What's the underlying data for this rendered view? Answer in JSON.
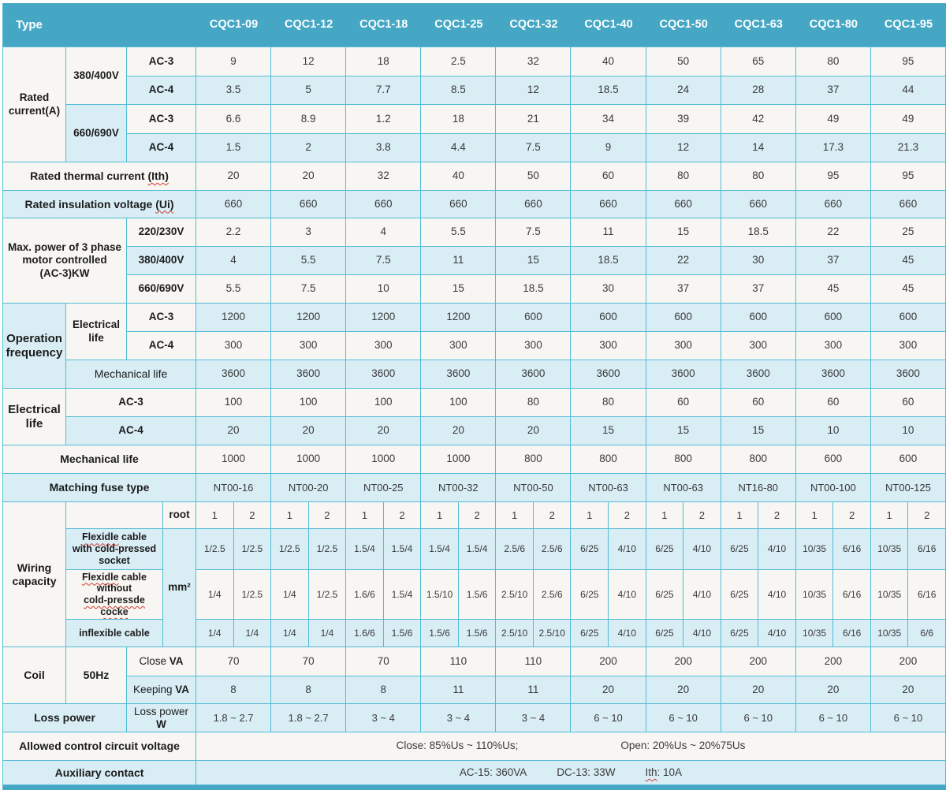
{
  "colors": {
    "header": "#45a7c4",
    "border": "#52bcd6",
    "row_cream": "#f8f6f2",
    "row_blue": "#d9edf5",
    "header_text": "#ffffff",
    "label_text": "#1c1c1c",
    "value_text": "#3a3a3a",
    "squiggle": "#d03a2f"
  },
  "header": {
    "type": "Type",
    "models": [
      "CQC1-09",
      "CQC1-12",
      "CQC1-18",
      "CQC1-25",
      "CQC1-32",
      "CQC1-40",
      "CQC1-50",
      "CQC1-63",
      "CQC1-80",
      "CQC1-95"
    ]
  },
  "rows": {
    "rc": {
      "label": "Rated current(A)",
      "groups": [
        {
          "label": "380/400V",
          "ac3": {
            "label": "AC-3",
            "values": [
              "9",
              "12",
              "18",
              "2.5",
              "32",
              "40",
              "50",
              "65",
              "80",
              "95"
            ]
          },
          "ac4": {
            "label": "AC-4",
            "values": [
              "3.5",
              "5",
              "7.7",
              "8.5",
              "12",
              "18.5",
              "24",
              "28",
              "37",
              "44"
            ]
          }
        },
        {
          "label": "660/690V",
          "ac3": {
            "label": "AC-3",
            "values": [
              "6.6",
              "8.9",
              "1.2",
              "18",
              "21",
              "34",
              "39",
              "42",
              "49",
              "49"
            ]
          },
          "ac4": {
            "label": "AC-4",
            "values": [
              "1.5",
              "2",
              "3.8",
              "4.4",
              "7.5",
              "9",
              "12",
              "14",
              "17.3",
              "21.3"
            ]
          }
        }
      ]
    },
    "thermal": {
      "label_parts": [
        {
          "t": "Rated thermal current "
        },
        {
          "t": "(Ith)",
          "sq": true
        }
      ],
      "values": [
        "20",
        "20",
        "32",
        "40",
        "50",
        "60",
        "80",
        "80",
        "95",
        "95"
      ]
    },
    "insulation": {
      "label_parts": [
        {
          "t": "Rated insulation voltage "
        },
        {
          "t": "(Ui)",
          "sq": true
        }
      ],
      "values": [
        "660",
        "660",
        "660",
        "660",
        "660",
        "660",
        "660",
        "660",
        "660",
        "660"
      ]
    },
    "maxpower": {
      "label_parts": [
        {
          "t": "Max. power of 3 phase",
          "br": true
        },
        {
          "t": "motor controlled",
          "br": true
        },
        {
          "t": "(AC-3)KW"
        }
      ],
      "rows": [
        {
          "label": "220/230V",
          "values": [
            "2.2",
            "3",
            "4",
            "5.5",
            "7.5",
            "11",
            "15",
            "18.5",
            "22",
            "25"
          ]
        },
        {
          "label": "380/400V",
          "values": [
            "4",
            "5.5",
            "7.5",
            "11",
            "15",
            "18.5",
            "22",
            "30",
            "37",
            "45"
          ]
        },
        {
          "label": "660/690V",
          "values": [
            "5.5",
            "7.5",
            "10",
            "15",
            "18.5",
            "30",
            "37",
            "37",
            "45",
            "45"
          ]
        }
      ]
    },
    "opfreq": {
      "label": "Operation frequency",
      "el_label": "Electrical life",
      "ac3": {
        "label": "AC-3",
        "values": [
          "1200",
          "1200",
          "1200",
          "1200",
          "600",
          "600",
          "600",
          "600",
          "600",
          "600"
        ]
      },
      "ac4": {
        "label": "AC-4",
        "values": [
          "300",
          "300",
          "300",
          "300",
          "300",
          "300",
          "300",
          "300",
          "300",
          "300"
        ]
      },
      "mech": {
        "label": "Mechanical life",
        "values": [
          "3600",
          "3600",
          "3600",
          "3600",
          "3600",
          "3600",
          "3600",
          "3600",
          "3600",
          "3600"
        ]
      }
    },
    "elife": {
      "label": "Electrical life",
      "ac3": {
        "label": "AC-3",
        "values": [
          "100",
          "100",
          "100",
          "100",
          "80",
          "80",
          "60",
          "60",
          "60",
          "60"
        ]
      },
      "ac4": {
        "label": "AC-4",
        "values": [
          "20",
          "20",
          "20",
          "20",
          "20",
          "15",
          "15",
          "15",
          "10",
          "10"
        ]
      }
    },
    "mech": {
      "label": "Mechanical life",
      "values": [
        "1000",
        "1000",
        "1000",
        "1000",
        "800",
        "800",
        "800",
        "800",
        "600",
        "600"
      ]
    },
    "fuse": {
      "label": "Matching fuse type",
      "values": [
        "NT00-16",
        "NT00-20",
        "NT00-25",
        "NT00-32",
        "NT00-50",
        "NT00-63",
        "NT00-63",
        "NT16-80",
        "NT00-100",
        "NT00-125"
      ]
    },
    "wiring": {
      "label": "Wiring capacity",
      "root_label": "root",
      "unit": "mm²",
      "root_values": [
        "1",
        "2",
        "1",
        "2",
        "1",
        "2",
        "1",
        "2",
        "1",
        "2",
        "1",
        "2",
        "1",
        "2",
        "1",
        "2",
        "1",
        "2",
        "1",
        "2"
      ],
      "rows": [
        {
          "label_parts": [
            {
              "t": "Flexidle",
              "sq": true
            },
            {
              "t": " cable",
              "br": true
            },
            {
              "t": "with cold-pressed",
              "br": true
            },
            {
              "t": "socket"
            }
          ],
          "values": [
            "1/2.5",
            "1/2.5",
            "1/2.5",
            "1/2.5",
            "1.5/4",
            "1.5/4",
            "1.5/4",
            "1.5/4",
            "2.5/6",
            "2.5/6",
            "6/25",
            "4/10",
            "6/25",
            "4/10",
            "6/25",
            "4/10",
            "10/35",
            "6/16",
            "10/35",
            "6/16"
          ]
        },
        {
          "label_parts": [
            {
              "t": "Flexidle",
              "sq": true
            },
            {
              "t": " cable",
              "br": true
            },
            {
              "t": "without",
              "br": true
            },
            {
              "t": "cold-pressde",
              "sq": true,
              "br": true
            },
            {
              "t": "cocke",
              "sq": true
            }
          ],
          "values": [
            "1/4",
            "1/2.5",
            "1/4",
            "1/2.5",
            "1.6/6",
            "1.5/4",
            "1.5/10",
            "1.5/6",
            "2.5/10",
            "2.5/6",
            "6/25",
            "4/10",
            "6/25",
            "4/10",
            "6/25",
            "4/10",
            "10/35",
            "6/16",
            "10/35",
            "6/16"
          ]
        },
        {
          "label": "inflexible cable",
          "values": [
            "1/4",
            "1/4",
            "1/4",
            "1/4",
            "1.6/6",
            "1.5/6",
            "1.5/6",
            "1.5/6",
            "2.5/10",
            "2.5/10",
            "6/25",
            "4/10",
            "6/25",
            "4/10",
            "6/25",
            "4/10",
            "10/35",
            "6/16",
            "10/35",
            "6/6"
          ]
        }
      ]
    },
    "coil": {
      "label": "Coil",
      "freq": "50Hz",
      "close": {
        "label_parts": [
          {
            "t": "Close "
          },
          {
            "t": "VA",
            "b": true
          }
        ],
        "values": [
          "70",
          "70",
          "70",
          "110",
          "110",
          "200",
          "200",
          "200",
          "200",
          "200"
        ]
      },
      "keeping": {
        "label_parts": [
          {
            "t": "Keeping "
          },
          {
            "t": "VA",
            "b": true
          }
        ],
        "values": [
          "8",
          "8",
          "8",
          "11",
          "11",
          "20",
          "20",
          "20",
          "20",
          "20"
        ]
      }
    },
    "loss": {
      "label": "Loss power",
      "unit_parts": [
        {
          "t": "Loss power",
          "br": true
        },
        {
          "t": "W",
          "b": true
        }
      ],
      "values": [
        "1.8 ~ 2.7",
        "1.8 ~ 2.7",
        "3 ~ 4",
        "3 ~ 4",
        "3 ~ 4",
        "6 ~ 10",
        "6 ~ 10",
        "6 ~ 10",
        "6 ~ 10",
        "6 ~ 10"
      ]
    },
    "allowed": {
      "label": "Allowed control circuit voltage",
      "close": "Close:  85%Us ~ 110%Us;",
      "open": "Open:  20%Us ~ 20%75Us"
    },
    "aux": {
      "label": "Auxiliary contact",
      "items": [
        [
          {
            "t": "AC-15: 360VA"
          }
        ],
        [
          {
            "t": "DC-13: 33W"
          }
        ],
        [
          {
            "t": "Ith",
            "sq": true
          },
          {
            "t": ": 10A"
          }
        ]
      ]
    }
  }
}
